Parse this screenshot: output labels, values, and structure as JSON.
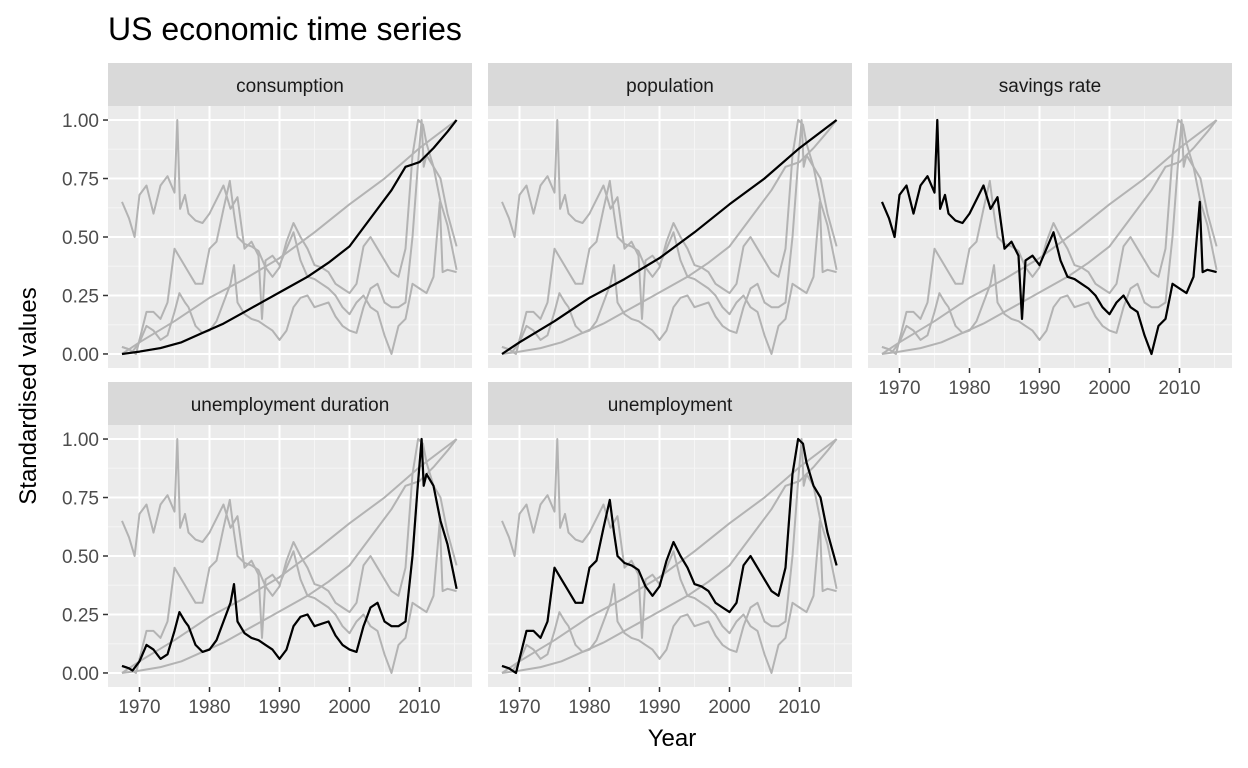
{
  "chart_data": {
    "type": "line",
    "title": "US economic time series",
    "xlabel": "Year",
    "ylabel": "Standardised values",
    "xlim": [
      1965.5,
      2017.5
    ],
    "ylim": [
      -0.06,
      1.06
    ],
    "x_ticks": [
      1970,
      1980,
      1990,
      2000,
      2010
    ],
    "y_ticks": [
      0.0,
      0.25,
      0.5,
      0.75,
      1.0
    ],
    "y_tick_labels": [
      "0.00",
      "0.25",
      "0.50",
      "0.75",
      "1.00"
    ],
    "facet_layout": "3 columns, 2 rows, facets wrapped",
    "grid": true,
    "panel_background": "#ebebeb",
    "strip_background": "#d9d9d9",
    "highlight_color": "#000000",
    "background_series_color": "#b3b3b3",
    "series": [
      {
        "name": "consumption",
        "points": [
          [
            1967.5,
            0.0
          ],
          [
            1970,
            0.01
          ],
          [
            1973,
            0.025
          ],
          [
            1976,
            0.05
          ],
          [
            1979,
            0.09
          ],
          [
            1982,
            0.13
          ],
          [
            1985,
            0.18
          ],
          [
            1988,
            0.23
          ],
          [
            1991,
            0.28
          ],
          [
            1994,
            0.33
          ],
          [
            1997,
            0.39
          ],
          [
            2000,
            0.46
          ],
          [
            2002,
            0.54
          ],
          [
            2004,
            0.62
          ],
          [
            2006,
            0.7
          ],
          [
            2008,
            0.8
          ],
          [
            2009,
            0.81
          ],
          [
            2010,
            0.82
          ],
          [
            2012,
            0.88
          ],
          [
            2014,
            0.95
          ],
          [
            2015.3,
            1.0
          ]
        ]
      },
      {
        "name": "population",
        "points": [
          [
            1967.5,
            0.0
          ],
          [
            1970,
            0.05
          ],
          [
            1975,
            0.14
          ],
          [
            1980,
            0.24
          ],
          [
            1985,
            0.32
          ],
          [
            1990,
            0.41
          ],
          [
            1995,
            0.52
          ],
          [
            2000,
            0.64
          ],
          [
            2005,
            0.75
          ],
          [
            2010,
            0.88
          ],
          [
            2015.3,
            1.0
          ]
        ]
      },
      {
        "name": "savings rate",
        "points": [
          [
            1967.5,
            0.65
          ],
          [
            1968.5,
            0.58
          ],
          [
            1969.3,
            0.5
          ],
          [
            1970,
            0.68
          ],
          [
            1971,
            0.72
          ],
          [
            1972,
            0.6
          ],
          [
            1973,
            0.72
          ],
          [
            1974,
            0.76
          ],
          [
            1975,
            0.69
          ],
          [
            1975.4,
            1.0
          ],
          [
            1975.8,
            0.62
          ],
          [
            1976.5,
            0.68
          ],
          [
            1977,
            0.6
          ],
          [
            1978,
            0.57
          ],
          [
            1979,
            0.56
          ],
          [
            1980,
            0.6
          ],
          [
            1981,
            0.66
          ],
          [
            1982,
            0.72
          ],
          [
            1983,
            0.62
          ],
          [
            1984,
            0.67
          ],
          [
            1985,
            0.45
          ],
          [
            1986,
            0.48
          ],
          [
            1987,
            0.42
          ],
          [
            1987.5,
            0.15
          ],
          [
            1988,
            0.4
          ],
          [
            1989,
            0.42
          ],
          [
            1990,
            0.38
          ],
          [
            1991,
            0.45
          ],
          [
            1992,
            0.52
          ],
          [
            1993,
            0.4
          ],
          [
            1994,
            0.33
          ],
          [
            1995,
            0.32
          ],
          [
            1996,
            0.3
          ],
          [
            1997,
            0.28
          ],
          [
            1998,
            0.25
          ],
          [
            1999,
            0.2
          ],
          [
            2000,
            0.17
          ],
          [
            2001,
            0.22
          ],
          [
            2002,
            0.25
          ],
          [
            2003,
            0.2
          ],
          [
            2004,
            0.18
          ],
          [
            2005,
            0.08
          ],
          [
            2006,
            0.0
          ],
          [
            2007,
            0.12
          ],
          [
            2008,
            0.15
          ],
          [
            2009,
            0.3
          ],
          [
            2010,
            0.28
          ],
          [
            2011,
            0.26
          ],
          [
            2012,
            0.33
          ],
          [
            2012.9,
            0.65
          ],
          [
            2013.3,
            0.35
          ],
          [
            2014,
            0.36
          ],
          [
            2015.3,
            0.35
          ]
        ]
      },
      {
        "name": "unemployment duration",
        "points": [
          [
            1967.5,
            0.03
          ],
          [
            1968.5,
            0.02
          ],
          [
            1969,
            0.01
          ],
          [
            1970,
            0.05
          ],
          [
            1971,
            0.12
          ],
          [
            1972,
            0.1
          ],
          [
            1973,
            0.06
          ],
          [
            1974,
            0.08
          ],
          [
            1975,
            0.18
          ],
          [
            1975.7,
            0.26
          ],
          [
            1976.5,
            0.22
          ],
          [
            1977,
            0.2
          ],
          [
            1978,
            0.12
          ],
          [
            1979,
            0.09
          ],
          [
            1980,
            0.1
          ],
          [
            1981,
            0.14
          ],
          [
            1982,
            0.22
          ],
          [
            1983,
            0.3
          ],
          [
            1983.5,
            0.38
          ],
          [
            1984,
            0.22
          ],
          [
            1985,
            0.17
          ],
          [
            1986,
            0.15
          ],
          [
            1987,
            0.14
          ],
          [
            1988,
            0.12
          ],
          [
            1989,
            0.1
          ],
          [
            1990,
            0.06
          ],
          [
            1991,
            0.1
          ],
          [
            1992,
            0.2
          ],
          [
            1993,
            0.24
          ],
          [
            1994,
            0.25
          ],
          [
            1995,
            0.2
          ],
          [
            1996,
            0.21
          ],
          [
            1997,
            0.22
          ],
          [
            1998,
            0.16
          ],
          [
            1999,
            0.12
          ],
          [
            2000,
            0.1
          ],
          [
            2001,
            0.09
          ],
          [
            2002,
            0.2
          ],
          [
            2003,
            0.28
          ],
          [
            2004,
            0.3
          ],
          [
            2005,
            0.22
          ],
          [
            2006,
            0.2
          ],
          [
            2007,
            0.2
          ],
          [
            2008,
            0.22
          ],
          [
            2009,
            0.5
          ],
          [
            2009.7,
            0.78
          ],
          [
            2010.3,
            1.0
          ],
          [
            2010.6,
            0.8
          ],
          [
            2011,
            0.85
          ],
          [
            2012,
            0.8
          ],
          [
            2013,
            0.65
          ],
          [
            2014,
            0.55
          ],
          [
            2015.3,
            0.36
          ]
        ]
      },
      {
        "name": "unemployment",
        "points": [
          [
            1967.5,
            0.03
          ],
          [
            1968.5,
            0.02
          ],
          [
            1969.5,
            0.0
          ],
          [
            1970,
            0.06
          ],
          [
            1971,
            0.18
          ],
          [
            1972,
            0.18
          ],
          [
            1973,
            0.15
          ],
          [
            1974,
            0.22
          ],
          [
            1975,
            0.45
          ],
          [
            1976,
            0.4
          ],
          [
            1977,
            0.35
          ],
          [
            1978,
            0.3
          ],
          [
            1979,
            0.3
          ],
          [
            1980,
            0.45
          ],
          [
            1981,
            0.48
          ],
          [
            1982,
            0.62
          ],
          [
            1982.9,
            0.74
          ],
          [
            1983.5,
            0.6
          ],
          [
            1984,
            0.5
          ],
          [
            1985,
            0.47
          ],
          [
            1986,
            0.46
          ],
          [
            1987,
            0.44
          ],
          [
            1988,
            0.37
          ],
          [
            1989,
            0.33
          ],
          [
            1990,
            0.37
          ],
          [
            1991,
            0.48
          ],
          [
            1992,
            0.56
          ],
          [
            1993,
            0.5
          ],
          [
            1994,
            0.45
          ],
          [
            1995,
            0.38
          ],
          [
            1996,
            0.37
          ],
          [
            1997,
            0.35
          ],
          [
            1998,
            0.3
          ],
          [
            1999,
            0.28
          ],
          [
            2000,
            0.26
          ],
          [
            2001,
            0.3
          ],
          [
            2002,
            0.46
          ],
          [
            2003,
            0.5
          ],
          [
            2004,
            0.45
          ],
          [
            2005,
            0.4
          ],
          [
            2006,
            0.35
          ],
          [
            2007,
            0.33
          ],
          [
            2008,
            0.45
          ],
          [
            2009,
            0.85
          ],
          [
            2009.8,
            1.0
          ],
          [
            2010.5,
            0.98
          ],
          [
            2011,
            0.9
          ],
          [
            2012,
            0.8
          ],
          [
            2013,
            0.75
          ],
          [
            2014,
            0.6
          ],
          [
            2015.3,
            0.46
          ]
        ]
      }
    ]
  }
}
